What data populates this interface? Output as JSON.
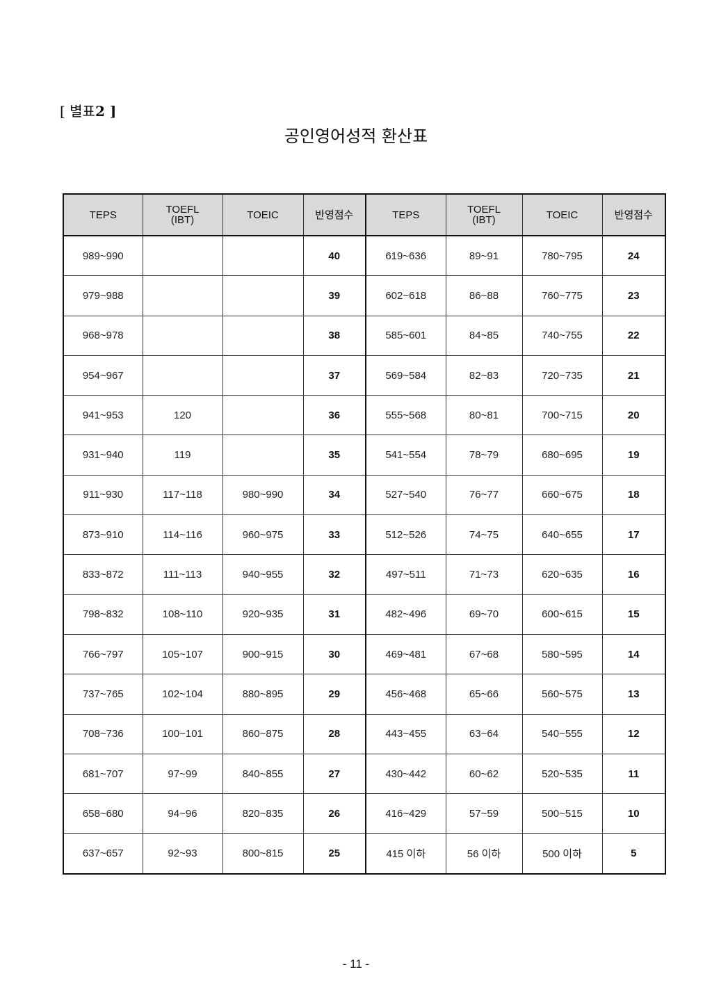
{
  "annex_label": "[ 별표",
  "annex_number": "2 ]",
  "title": "공인영어성적 환산표",
  "header": [
    "TEPS",
    "TOEFL (IBT)",
    "TOEIC",
    "반영점수",
    "TEPS",
    "TOEFL (IBT)",
    "TOEIC",
    "반영점수"
  ],
  "rows": [
    [
      "989~990",
      "",
      "",
      "40",
      "619~636",
      "89~91",
      "780~795",
      "24"
    ],
    [
      "979~988",
      "",
      "",
      "39",
      "602~618",
      "86~88",
      "760~775",
      "23"
    ],
    [
      "968~978",
      "",
      "",
      "38",
      "585~601",
      "84~85",
      "740~755",
      "22"
    ],
    [
      "954~967",
      "",
      "",
      "37",
      "569~584",
      "82~83",
      "720~735",
      "21"
    ],
    [
      "941~953",
      "120",
      "",
      "36",
      "555~568",
      "80~81",
      "700~715",
      "20"
    ],
    [
      "931~940",
      "119",
      "",
      "35",
      "541~554",
      "78~79",
      "680~695",
      "19"
    ],
    [
      "911~930",
      "117~118",
      "980~990",
      "34",
      "527~540",
      "76~77",
      "660~675",
      "18"
    ],
    [
      "873~910",
      "114~116",
      "960~975",
      "33",
      "512~526",
      "74~75",
      "640~655",
      "17"
    ],
    [
      "833~872",
      "111~113",
      "940~955",
      "32",
      "497~511",
      "71~73",
      "620~635",
      "16"
    ],
    [
      "798~832",
      "108~110",
      "920~935",
      "31",
      "482~496",
      "69~70",
      "600~615",
      "15"
    ],
    [
      "766~797",
      "105~107",
      "900~915",
      "30",
      "469~481",
      "67~68",
      "580~595",
      "14"
    ],
    [
      "737~765",
      "102~104",
      "880~895",
      "29",
      "456~468",
      "65~66",
      "560~575",
      "13"
    ],
    [
      "708~736",
      "100~101",
      "860~875",
      "28",
      "443~455",
      "63~64",
      "540~555",
      "12"
    ],
    [
      "681~707",
      "97~99",
      "840~855",
      "27",
      "430~442",
      "60~62",
      "520~535",
      "11"
    ],
    [
      "658~680",
      "94~96",
      "820~835",
      "26",
      "416~429",
      "57~59",
      "500~515",
      "10"
    ],
    [
      "637~657",
      "92~93",
      "800~815",
      "25",
      "415 이하",
      "56 이하",
      "500 이하",
      "5"
    ]
  ],
  "page_number": "- 11 -"
}
